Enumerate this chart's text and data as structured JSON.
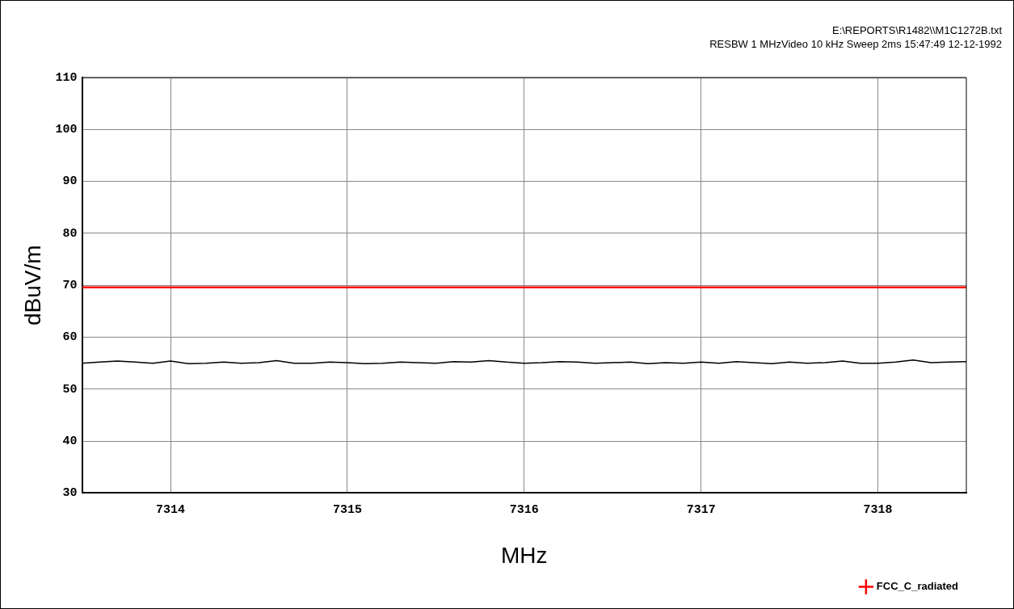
{
  "chart_data": {
    "type": "line",
    "xlabel": "MHz",
    "ylabel": "dBuV/m",
    "annotations": [
      "E:\\REPORTS\\R1482\\\\M1C1272B.txt",
      "RESBW 1 MHzVideo 10 kHz Sweep 2ms 15:47:49  12-12-1992"
    ],
    "x": [
      7313.5,
      7313.6,
      7313.7,
      7313.8,
      7313.9,
      7314.0,
      7314.1,
      7314.2,
      7314.3,
      7314.4,
      7314.5,
      7314.6,
      7314.7,
      7314.8,
      7314.9,
      7315.0,
      7315.1,
      7315.2,
      7315.3,
      7315.4,
      7315.5,
      7315.6,
      7315.7,
      7315.8,
      7315.9,
      7316.0,
      7316.1,
      7316.2,
      7316.3,
      7316.4,
      7316.5,
      7316.6,
      7316.7,
      7316.8,
      7316.9,
      7317.0,
      7317.1,
      7317.2,
      7317.3,
      7317.4,
      7317.5,
      7317.6,
      7317.7,
      7317.8,
      7317.9,
      7318.0,
      7318.1,
      7318.2,
      7318.3,
      7318.4,
      7318.5
    ],
    "series": [
      {
        "color": "#000000",
        "values": [
          55.0,
          55.2,
          55.4,
          55.2,
          55.0,
          55.4,
          54.9,
          55.0,
          55.2,
          55.0,
          55.1,
          55.5,
          55.0,
          55.0,
          55.2,
          55.1,
          54.9,
          55.0,
          55.2,
          55.1,
          55.0,
          55.3,
          55.2,
          55.5,
          55.2,
          55.0,
          55.1,
          55.3,
          55.2,
          55.0,
          55.1,
          55.2,
          54.9,
          55.1,
          55.0,
          55.2,
          55.0,
          55.3,
          55.1,
          54.9,
          55.2,
          55.0,
          55.1,
          55.4,
          55.0,
          55.0,
          55.2,
          55.6,
          55.1,
          55.2,
          55.3
        ]
      },
      {
        "name": "FCC_C_radiated",
        "color": "#ff0000",
        "x": [
          7313.5,
          7318.5
        ],
        "values": [
          69.6,
          69.6
        ]
      }
    ],
    "xlim": [
      7313.5,
      7318.5
    ],
    "xticks": [
      7314,
      7315,
      7316,
      7317,
      7318
    ],
    "ylim": [
      30,
      110
    ],
    "yticks": [
      30,
      40,
      50,
      60,
      70,
      80,
      90,
      100,
      110
    ],
    "grid": true,
    "legend": "bottom right"
  }
}
